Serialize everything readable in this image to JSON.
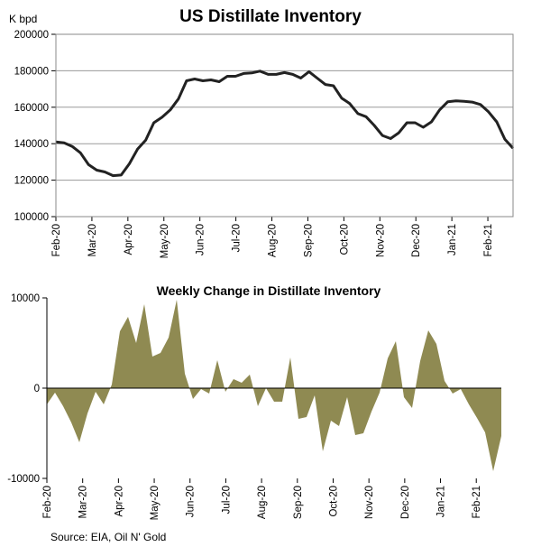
{
  "source": "Source: EIA, Oil N' Gold",
  "chart_data": [
    {
      "type": "line",
      "title": "US Distillate Inventory",
      "ylabel": "K bpd",
      "xlabel": "",
      "ylim": [
        100000,
        200000
      ],
      "yticks": [
        100000,
        120000,
        140000,
        160000,
        180000,
        200000
      ],
      "grid": true,
      "color": "#222222",
      "x_tick_labels": [
        "Feb-20",
        "Mar-20",
        "Apr-20",
        "May-20",
        "Jun-20",
        "Jul-20",
        "Aug-20",
        "Sep-20",
        "Oct-20",
        "Nov-20",
        "Dec-20",
        "Jan-21",
        "Feb-21"
      ],
      "series": [
        {
          "name": "US Distillate Inventory",
          "values": [
            141000,
            140500,
            138500,
            135000,
            128500,
            125500,
            124500,
            122500,
            122800,
            129000,
            137000,
            142000,
            151500,
            154500,
            158500,
            164500,
            174500,
            175500,
            174500,
            175000,
            174000,
            177000,
            177000,
            178500,
            178800,
            179800,
            178000,
            178000,
            179000,
            178000,
            176000,
            179500,
            176000,
            172500,
            171800,
            165000,
            162000,
            156500,
            154800,
            150000,
            144500,
            142800,
            146000,
            151500,
            151500,
            149000,
            152000,
            158500,
            163000,
            163500,
            163200,
            162800,
            161500,
            157500,
            152000,
            142500,
            137500
          ]
        }
      ]
    },
    {
      "type": "area",
      "title": "Weekly Change in Distillate Inventory",
      "ylim": [
        -10000,
        10000
      ],
      "yticks": [
        -10000,
        0,
        10000
      ],
      "grid": false,
      "color": "#8f8a52",
      "x_tick_labels": [
        "Feb-20",
        "Mar-20",
        "Apr-20",
        "May-20",
        "Jun-20",
        "Jul-20",
        "Aug-20",
        "Sep-20",
        "Oct-20",
        "Nov-20",
        "Dec-20",
        "Jan-21",
        "Feb-21"
      ],
      "series": [
        {
          "name": "Weekly Change",
          "values": [
            -1800,
            -500,
            -2000,
            -3800,
            -6000,
            -2800,
            -400,
            -1800,
            400,
            6300,
            7900,
            5000,
            9300,
            3500,
            3900,
            5600,
            9800,
            1600,
            -1200,
            -100,
            -600,
            3100,
            -400,
            1000,
            600,
            1500,
            -2000,
            0,
            -1500,
            -1500,
            3400,
            -3400,
            -3200,
            -800,
            -7000,
            -3600,
            -4200,
            -1000,
            -5200,
            -5000,
            -2600,
            -500,
            3300,
            5200,
            -1000,
            -2200,
            3000,
            6400,
            4900,
            800,
            -600,
            -100,
            -1800,
            -3300,
            -4900,
            -9200,
            -5300
          ]
        }
      ]
    }
  ]
}
